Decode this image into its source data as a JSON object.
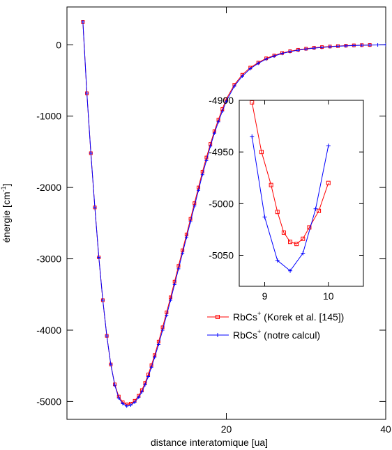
{
  "chart_data": [
    {
      "type": "line",
      "xlabel": "distance interatomique [ua]",
      "ylabel": "énergie [cm",
      "ylabel_sup": "-1",
      "ylabel_end": "]",
      "xlim": [
        0,
        40
      ],
      "ylim": [
        -5250,
        530
      ],
      "xticks": [
        20,
        40
      ],
      "yticks": [
        0,
        -1000,
        -2000,
        -3000,
        -4000,
        -5000
      ],
      "grid": false,
      "legend_position": "middle-right",
      "series": [
        {
          "name": "RbCs+ (Korek et al. [145])",
          "legend_main": "RbCs",
          "legend_sup": "+",
          "legend_rest": " (Korek et al. [145])",
          "color": "#ff0000",
          "marker": "square",
          "x": [
            2.0,
            2.5,
            3.0,
            3.5,
            4.0,
            4.5,
            5.0,
            5.5,
            6.0,
            6.5,
            7.0,
            7.5,
            8.0,
            8.5,
            9.0,
            9.4,
            9.8,
            10.2,
            10.6,
            11.0,
            11.5,
            12.0,
            12.5,
            13.0,
            13.5,
            14.0,
            14.5,
            15.0,
            15.5,
            16.0,
            16.5,
            17.0,
            17.5,
            18.0,
            18.5,
            19.0,
            19.5,
            20.0,
            21.0,
            22.0,
            23.0,
            24.0,
            25.0,
            26.0,
            27.0,
            28.0,
            29.0,
            30.0,
            31.0,
            32.0,
            33.0,
            34.0,
            35.0,
            36.0,
            37.0,
            38.0
          ],
          "y": [
            320,
            -680,
            -1520,
            -2280,
            -2980,
            -3580,
            -4080,
            -4480,
            -4760,
            -4930,
            -5010,
            -5040,
            -5030,
            -4990,
            -4920,
            -4840,
            -4740,
            -4620,
            -4490,
            -4350,
            -4160,
            -3960,
            -3750,
            -3540,
            -3320,
            -3100,
            -2880,
            -2660,
            -2440,
            -2220,
            -2000,
            -1780,
            -1580,
            -1390,
            -1210,
            -1050,
            -900,
            -760,
            -560,
            -420,
            -320,
            -250,
            -190,
            -150,
            -115,
            -90,
            -70,
            -55,
            -42,
            -32,
            -24,
            -18,
            -12,
            -8,
            -5,
            -3
          ]
        },
        {
          "name": "RbCs+ (notre calcul)",
          "legend_main": "RbCs",
          "legend_sup": "+",
          "legend_rest": " (notre calcul)",
          "color": "#0000ff",
          "marker": "plus",
          "x": [
            2.0,
            2.5,
            3.0,
            3.5,
            4.0,
            4.5,
            5.0,
            5.5,
            6.0,
            6.5,
            7.0,
            7.5,
            8.0,
            8.5,
            9.0,
            9.4,
            9.8,
            10.2,
            10.6,
            11.0,
            11.5,
            12.0,
            12.5,
            13.0,
            13.5,
            14.0,
            14.5,
            15.0,
            15.5,
            16.0,
            16.5,
            17.0,
            17.5,
            18.0,
            18.5,
            19.0,
            19.5,
            20.0,
            21.0,
            22.0,
            23.0,
            24.0,
            25.0,
            26.0,
            27.0,
            28.0,
            29.0,
            30.0,
            31.0,
            32.0,
            33.0,
            34.0,
            35.0,
            36.0,
            37.0,
            38.0,
            39.0,
            40.0
          ],
          "y": [
            320,
            -680,
            -1520,
            -2280,
            -2980,
            -3580,
            -4080,
            -4480,
            -4770,
            -4950,
            -5030,
            -5065,
            -5050,
            -5010,
            -4940,
            -4865,
            -4765,
            -4650,
            -4520,
            -4380,
            -4200,
            -4000,
            -3790,
            -3580,
            -3360,
            -3140,
            -2920,
            -2700,
            -2480,
            -2260,
            -2040,
            -1820,
            -1620,
            -1420,
            -1240,
            -1080,
            -930,
            -790,
            -580,
            -440,
            -335,
            -260,
            -200,
            -158,
            -122,
            -96,
            -76,
            -60,
            -47,
            -37,
            -28,
            -21,
            -15,
            -11,
            -7,
            -4,
            -2,
            0
          ]
        }
      ]
    },
    {
      "type": "line",
      "xlim": [
        8.6,
        10.55
      ],
      "ylim": [
        -5080,
        -4900
      ],
      "xticks": [
        9,
        10
      ],
      "yticks": [
        -4900,
        -4950,
        -5000,
        -5050
      ],
      "grid": false,
      "series": [
        {
          "name": "RbCs+ (Korek et al. [145])",
          "color": "#ff0000",
          "marker": "square",
          "x": [
            8.8,
            8.95,
            9.1,
            9.2,
            9.3,
            9.4,
            9.5,
            9.6,
            9.7,
            9.85,
            10.0
          ],
          "y": [
            -4902,
            -4950,
            -4982,
            -5008,
            -5028,
            -5037,
            -5039,
            -5034,
            -5023,
            -5007,
            -4980
          ]
        },
        {
          "name": "RbCs+ (notre calcul)",
          "color": "#0000ff",
          "marker": "plus",
          "x": [
            8.8,
            9.0,
            9.2,
            9.4,
            9.6,
            9.8,
            10.0
          ],
          "y": [
            -4935,
            -5013,
            -5055,
            -5065,
            -5048,
            -5005,
            -4944
          ]
        }
      ]
    }
  ]
}
